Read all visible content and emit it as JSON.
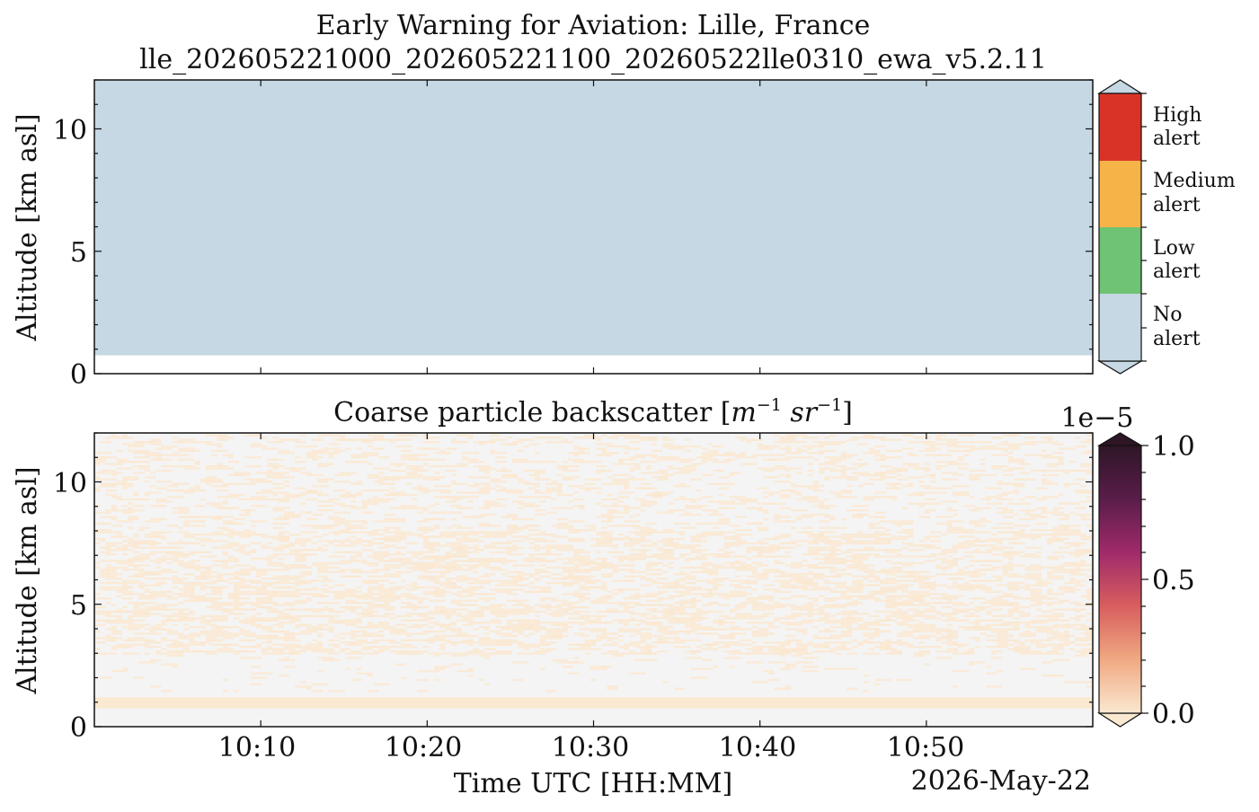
{
  "figure": {
    "title_line1": "Early Warning for Aviation: Lille, France",
    "title_line2": "lle_202605221000_202605221100_20260522lle0310_ewa_v5.2.11",
    "date_label": "2026-May-22",
    "xlabel": "Time UTC [HH:MM]"
  },
  "chart_data": [
    {
      "type": "heatmap",
      "panel": "alert",
      "title": "",
      "ylabel": "Altitude [km asl]",
      "xlabel": "",
      "x_range": [
        "10:00",
        "11:00"
      ],
      "ylim": [
        0,
        12
      ],
      "y_ticks": [
        0,
        5,
        10
      ],
      "x_ticks": [
        "10:10",
        "10:20",
        "10:30",
        "10:40",
        "10:50"
      ],
      "alert_field": {
        "level": "No alert",
        "altitude_km_from": 0.75,
        "altitude_km_to": 12,
        "time_from": "10:00",
        "time_to": "11:00"
      },
      "colorbar": {
        "categories": [
          {
            "label": "High\nalert",
            "line1": "High",
            "line2": "alert",
            "color": "#d93328"
          },
          {
            "label": "Medium\nalert",
            "line1": "Medium",
            "line2": "alert",
            "color": "#f6b348"
          },
          {
            "label": "Low\nalert",
            "line1": "Low",
            "line2": "alert",
            "color": "#6fc374"
          },
          {
            "label": "No\nalert",
            "line1": "No",
            "line2": "alert",
            "color": "#c5d8e3"
          }
        ]
      }
    },
    {
      "type": "heatmap",
      "panel": "backscatter",
      "title": "Coarse particle backscatter [m⁻¹ sr⁻¹]",
      "title_prefix": "Coarse particle backscatter [",
      "title_unit_m": "m",
      "title_unit_m_exp": "−1",
      "title_unit_sr": " sr",
      "title_unit_sr_exp": "−1",
      "title_suffix": "]",
      "ylabel": "Altitude [km asl]",
      "xlabel": "Time UTC [HH:MM]",
      "x_range": [
        "10:00",
        "11:00"
      ],
      "ylim": [
        0,
        12
      ],
      "y_ticks": [
        0,
        5,
        10
      ],
      "x_ticks": [
        "10:10",
        "10:20",
        "10:30",
        "10:40",
        "10:50"
      ],
      "colorbar": {
        "scale_label": "1e−5",
        "range": [
          0.0,
          1.0
        ],
        "ticks": [
          "0.0",
          "0.5",
          "1.0"
        ],
        "colors": [
          "#fae8d0",
          "#f0a982",
          "#d85e5e",
          "#a02a6b",
          "#5a1d4a",
          "#2e1626"
        ]
      },
      "layers": [
        {
          "description": "surface layer",
          "altitude_km": [
            0.75,
            1.2
          ],
          "value": 0.02
        },
        {
          "description": "weak aerosol 3-8 km",
          "altitude_km": [
            3,
            8
          ],
          "value": 0.01
        },
        {
          "description": "sparse noise 8-12 km",
          "altitude_km": [
            8,
            12
          ],
          "value": 0.005
        }
      ],
      "background_color": "#f4f4f4",
      "aerosol_color": "#fae8d0"
    }
  ]
}
